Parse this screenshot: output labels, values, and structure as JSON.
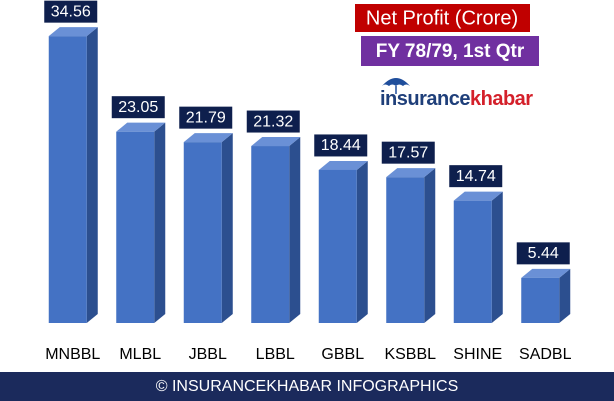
{
  "chart_data": {
    "type": "bar",
    "title": "Net Profit (Crore)",
    "subtitle": "FY 78/79, 1st Qtr",
    "logo": [
      "insurance",
      "khabar"
    ],
    "footer": "© INSURANCEKHABAR INFOGRAPHICS",
    "categories": [
      "MNBBL",
      "MLBL",
      "JBBL",
      "LBBL",
      "GBBL",
      "KSBBL",
      "SHINE",
      "SADBL"
    ],
    "values": [
      34.56,
      23.05,
      21.79,
      21.32,
      18.44,
      17.57,
      14.74,
      5.44
    ],
    "color": "#4472c4"
  }
}
